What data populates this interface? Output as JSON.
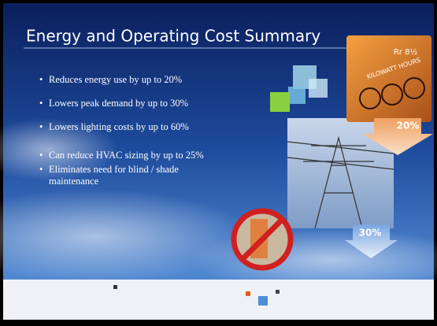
{
  "slide": {
    "title": "Energy and Operating Cost Summary",
    "bullets": [
      "Reduces energy use by up to 20%",
      "Lowers peak demand by up to 30%",
      "Lowers lighting costs by up to 60%",
      "Can reduce HVAC sizing by up to 25%",
      "Eliminates need for blind / shade maintenance"
    ],
    "meter_text": [
      "Rr 8½",
      "KILOWATT HOURS"
    ],
    "arrows": [
      "20%",
      "30%"
    ]
  }
}
